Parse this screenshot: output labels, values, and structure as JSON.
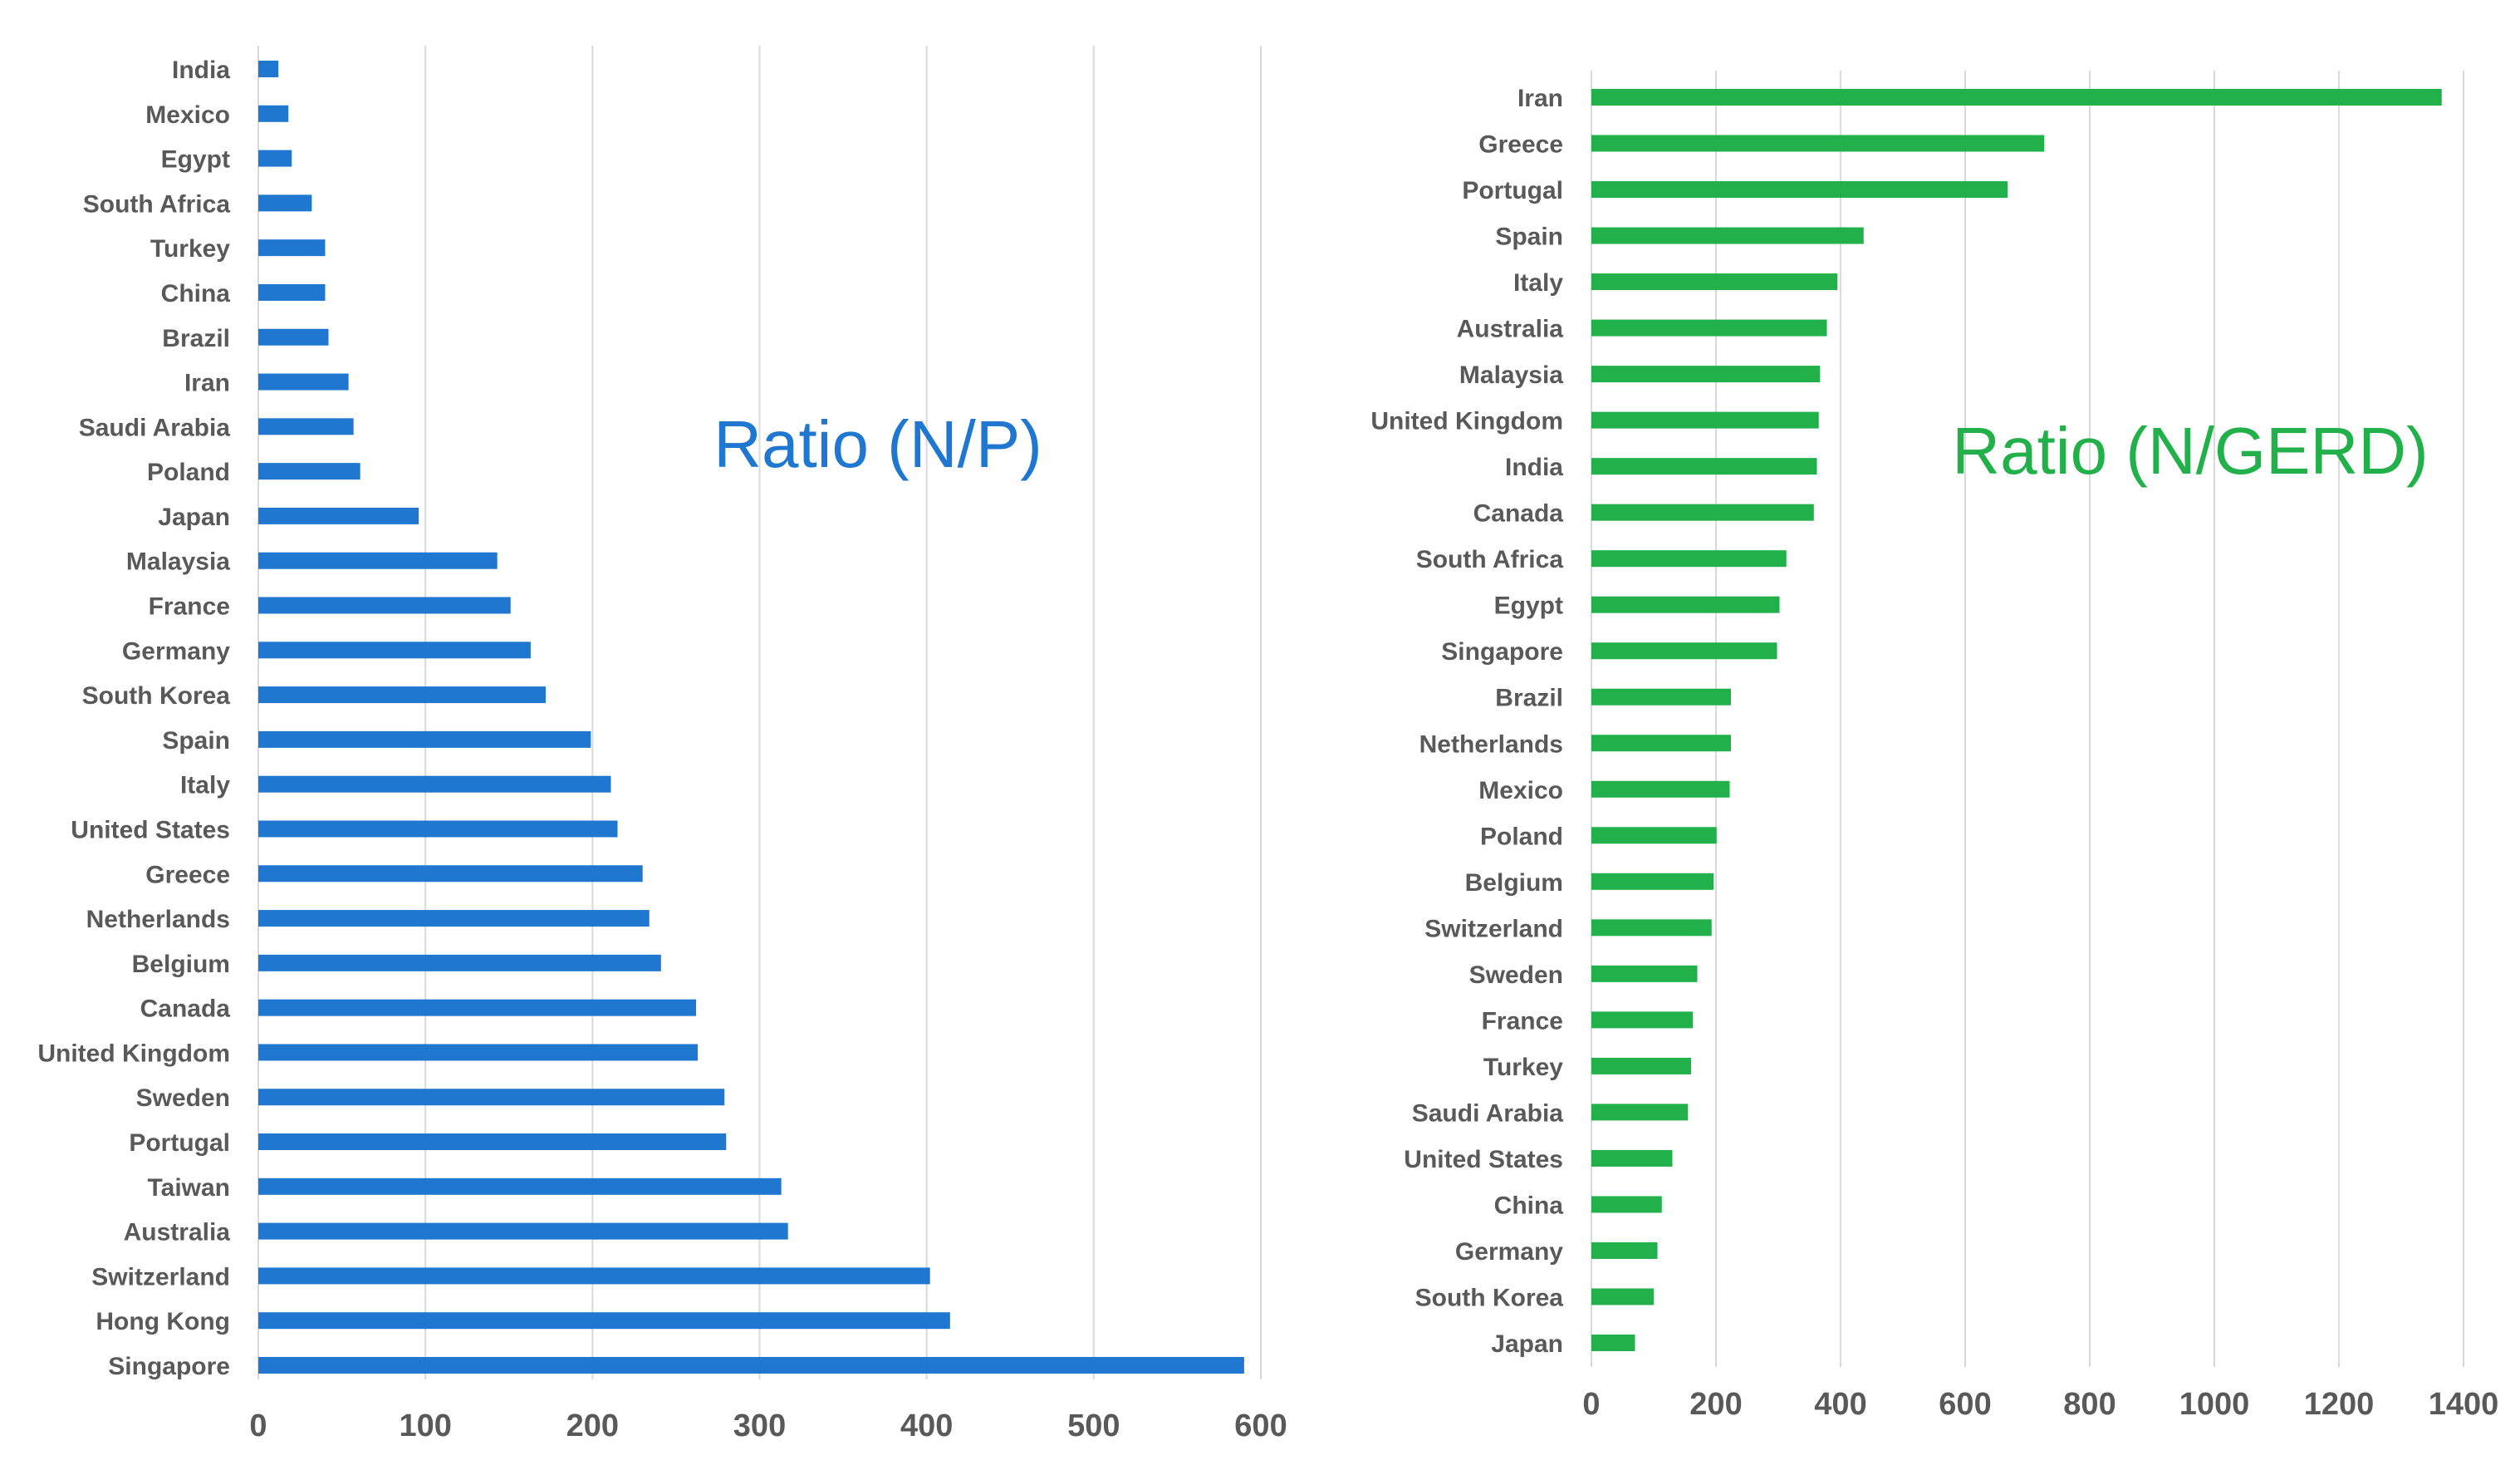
{
  "chart_data": [
    {
      "type": "bar",
      "orientation": "horizontal",
      "title": "Ratio (N/P)",
      "color": "#1f77d0",
      "categories": [
        "India",
        "Mexico",
        "Egypt",
        "South Africa",
        "Turkey",
        "China",
        "Brazil",
        "Iran",
        "Saudi Arabia",
        "Poland",
        "Japan",
        "Malaysia",
        "France",
        "Germany",
        "South Korea",
        "Spain",
        "Italy",
        "United States",
        "Greece",
        "Netherlands",
        "Belgium",
        "Canada",
        "United Kingdom",
        "Sweden",
        "Portugal",
        "Taiwan",
        "Australia",
        "Switzerland",
        "Hong Kong",
        "Singapore"
      ],
      "values": [
        12,
        18,
        20,
        32,
        40,
        40,
        42,
        54,
        57,
        61,
        96,
        143,
        151,
        163,
        172,
        199,
        211,
        215,
        230,
        234,
        241,
        262,
        263,
        279,
        280,
        313,
        317,
        402,
        414,
        590
      ],
      "xlim": [
        0,
        600
      ],
      "ticks": [
        0,
        100,
        200,
        300,
        400,
        500,
        600
      ],
      "grid": true,
      "xlabel": "",
      "ylabel": ""
    },
    {
      "type": "bar",
      "orientation": "horizontal",
      "title": "Ratio (N/GERD)",
      "color": "#22b04a",
      "categories": [
        "Iran",
        "Greece",
        "Portugal",
        "Spain",
        "Italy",
        "Australia",
        "Malaysia",
        "United Kingdom",
        "India",
        "Canada",
        "South Africa",
        "Egypt",
        "Singapore",
        "Brazil",
        "Netherlands",
        "Mexico",
        "Poland",
        "Belgium",
        "Switzerland",
        "Sweden",
        "France",
        "Turkey",
        "Saudi Arabia",
        "United States",
        "China",
        "Germany",
        "South Korea",
        "Japan"
      ],
      "values": [
        1365,
        727,
        668,
        437,
        395,
        378,
        367,
        365,
        362,
        357,
        313,
        302,
        298,
        224,
        224,
        222,
        201,
        196,
        193,
        170,
        163,
        160,
        155,
        130,
        113,
        106,
        100,
        70
      ],
      "xlim": [
        0,
        1400
      ],
      "ticks": [
        0,
        200,
        400,
        600,
        800,
        1000,
        1200,
        1400
      ],
      "grid": true,
      "xlabel": "",
      "ylabel": ""
    }
  ]
}
